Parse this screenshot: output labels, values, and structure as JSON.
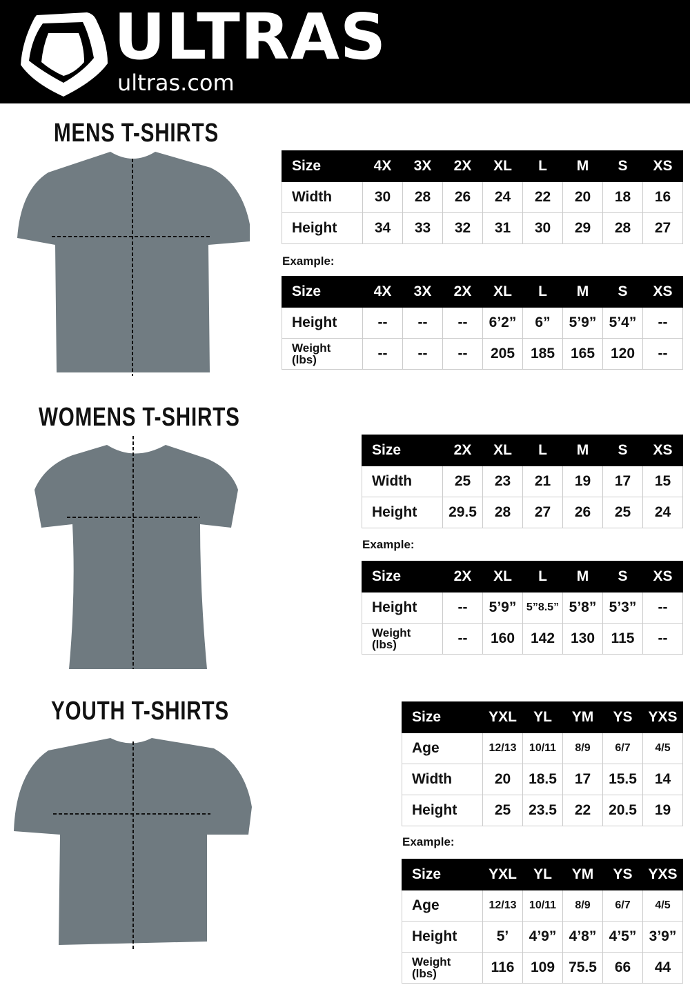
{
  "header": {
    "brand": "ULTRAS",
    "site": "ultras.com",
    "background": "#000000"
  },
  "sections": [
    {
      "title": "MENS  T-SHIRTS",
      "example_label": "Example:",
      "size_table": {
        "headers": [
          "Size",
          "4X",
          "3X",
          "2X",
          "XL",
          "L",
          "M",
          "S",
          "XS"
        ],
        "rows": [
          [
            "Width",
            "30",
            "28",
            "26",
            "24",
            "22",
            "20",
            "18",
            "16"
          ],
          [
            "Height",
            "34",
            "33",
            "32",
            "31",
            "30",
            "29",
            "28",
            "27"
          ]
        ]
      },
      "example_table": {
        "headers": [
          "Size",
          "4X",
          "3X",
          "2X",
          "XL",
          "L",
          "M",
          "S",
          "XS"
        ],
        "rows": [
          [
            "Height",
            "--",
            "--",
            "--",
            "6’2”",
            "6”",
            "5’9”",
            "5’4”",
            "--"
          ],
          [
            "Weight (lbs)",
            "--",
            "--",
            "--",
            "205",
            "185",
            "165",
            "120",
            "--"
          ]
        ]
      }
    },
    {
      "title": "WOMENS  T-SHIRTS",
      "example_label": "Example:",
      "size_table": {
        "headers": [
          "Size",
          "2X",
          "XL",
          "L",
          "M",
          "S",
          "XS"
        ],
        "rows": [
          [
            "Width",
            "25",
            "23",
            "21",
            "19",
            "17",
            "15"
          ],
          [
            "Height",
            "29.5",
            "28",
            "27",
            "26",
            "25",
            "24"
          ]
        ]
      },
      "example_table": {
        "headers": [
          "Size",
          "2X",
          "XL",
          "L",
          "M",
          "S",
          "XS"
        ],
        "rows": [
          [
            "Height",
            "--",
            "5’9”",
            "5”8.5”",
            "5’8”",
            "5’3”",
            "--"
          ],
          [
            "Weight (lbs)",
            "--",
            "160",
            "142",
            "130",
            "115",
            "--"
          ]
        ]
      }
    },
    {
      "title": "YOUTH  T-SHIRTS",
      "example_label": "Example:",
      "size_table": {
        "headers": [
          "Size",
          "YXL",
          "YL",
          "YM",
          "YS",
          "YXS"
        ],
        "rows": [
          [
            "Age",
            "12/13",
            "10/11",
            "8/9",
            "6/7",
            "4/5"
          ],
          [
            "Width",
            "20",
            "18.5",
            "17",
            "15.5",
            "14"
          ],
          [
            "Height",
            "25",
            "23.5",
            "22",
            "20.5",
            "19"
          ]
        ]
      },
      "example_table": {
        "headers": [
          "Size",
          "YXL",
          "YL",
          "YM",
          "YS",
          "YXS"
        ],
        "rows": [
          [
            "Age",
            "12/13",
            "10/11",
            "8/9",
            "6/7",
            "4/5"
          ],
          [
            "Height",
            "5’",
            "4’9”",
            "4’8”",
            "4’5”",
            "3’9”"
          ],
          [
            "Weight (lbs)",
            "116",
            "109",
            "75.5",
            "66",
            "44"
          ]
        ]
      }
    }
  ],
  "colors": {
    "shirt": "#6f7a80",
    "header_row": "#000000"
  }
}
